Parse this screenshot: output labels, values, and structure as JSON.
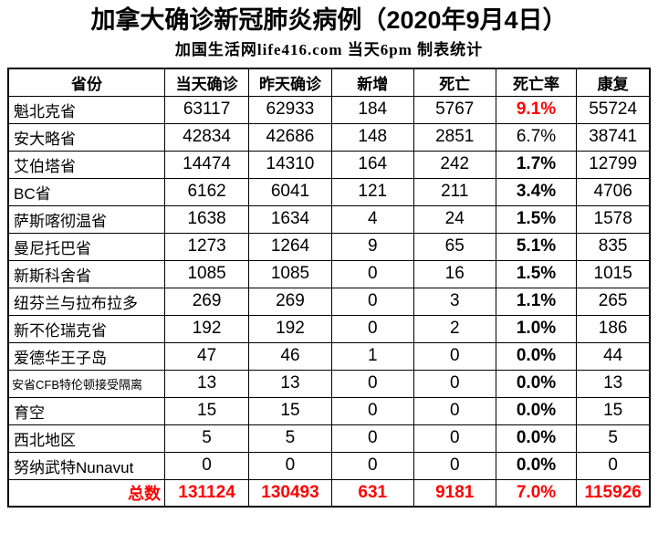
{
  "title": "加拿大确诊新冠肺炎病例（2020年9月4日）",
  "subtitle": "加国生活网life416.com 当天6pm 制表统计",
  "colors": {
    "highlight_red": "#ff0000",
    "border": "#000000",
    "background": "#ffffff",
    "text": "#000000"
  },
  "chart_data": {
    "type": "table",
    "title": "加拿大确诊新冠肺炎病例（2020年9月4日）",
    "subtitle": "加国生活网life416.com 当天6pm 制表统计",
    "columns": [
      "省份",
      "当天确诊",
      "昨天确诊",
      "新增",
      "死亡",
      "死亡率",
      "康复"
    ],
    "rows": [
      {
        "province": "魁北克省",
        "today": 63117,
        "yesterday": 62933,
        "new_cases": 184,
        "deaths": 5767,
        "death_rate": "9.1%",
        "recovered": 55724,
        "rate_style": "red"
      },
      {
        "province": "安大略省",
        "today": 42834,
        "yesterday": 42686,
        "new_cases": 148,
        "deaths": 2851,
        "death_rate": "6.7%",
        "recovered": 38741,
        "rate_style": "normal"
      },
      {
        "province": "艾伯塔省",
        "today": 14474,
        "yesterday": 14310,
        "new_cases": 164,
        "deaths": 242,
        "death_rate": "1.7%",
        "recovered": 12799,
        "rate_style": "bold"
      },
      {
        "province": "BC省",
        "today": 6162,
        "yesterday": 6041,
        "new_cases": 121,
        "deaths": 211,
        "death_rate": "3.4%",
        "recovered": 4706,
        "rate_style": "bold"
      },
      {
        "province": "萨斯喀彻温省",
        "today": 1638,
        "yesterday": 1634,
        "new_cases": 4,
        "deaths": 24,
        "death_rate": "1.5%",
        "recovered": 1578,
        "rate_style": "bold"
      },
      {
        "province": "曼尼托巴省",
        "today": 1273,
        "yesterday": 1264,
        "new_cases": 9,
        "deaths": 65,
        "death_rate": "5.1%",
        "recovered": 835,
        "rate_style": "bold"
      },
      {
        "province": "新斯科舍省",
        "today": 1085,
        "yesterday": 1085,
        "new_cases": 0,
        "deaths": 16,
        "death_rate": "1.5%",
        "recovered": 1015,
        "rate_style": "bold"
      },
      {
        "province": "纽芬兰与拉布拉多",
        "today": 269,
        "yesterday": 269,
        "new_cases": 0,
        "deaths": 3,
        "death_rate": "1.1%",
        "recovered": 265,
        "rate_style": "bold"
      },
      {
        "province": "新不伦瑞克省",
        "today": 192,
        "yesterday": 192,
        "new_cases": 0,
        "deaths": 2,
        "death_rate": "1.0%",
        "recovered": 186,
        "rate_style": "bold"
      },
      {
        "province": "爱德华王子岛",
        "today": 47,
        "yesterday": 46,
        "new_cases": 1,
        "deaths": 0,
        "death_rate": "0.0%",
        "recovered": 44,
        "rate_style": "bold"
      },
      {
        "province": "安省CFB特伦顿接受隔离",
        "today": 13,
        "yesterday": 13,
        "new_cases": 0,
        "deaths": 0,
        "death_rate": "0.0%",
        "recovered": 13,
        "rate_style": "bold",
        "province_small": true
      },
      {
        "province": "育空",
        "today": 15,
        "yesterday": 15,
        "new_cases": 0,
        "deaths": 0,
        "death_rate": "0.0%",
        "recovered": 15,
        "rate_style": "bold"
      },
      {
        "province": "西北地区",
        "today": 5,
        "yesterday": 5,
        "new_cases": 0,
        "deaths": 0,
        "death_rate": "0.0%",
        "recovered": 5,
        "rate_style": "bold"
      },
      {
        "province": "努纳武特Nunavut",
        "today": 0,
        "yesterday": 0,
        "new_cases": 0,
        "deaths": 0,
        "death_rate": "0.0%",
        "recovered": 0,
        "rate_style": "bold"
      }
    ],
    "total": {
      "label": "总数",
      "today": 131124,
      "yesterday": 130493,
      "new_cases": 631,
      "deaths": 9181,
      "death_rate": "7.0%",
      "recovered": 115926
    }
  }
}
